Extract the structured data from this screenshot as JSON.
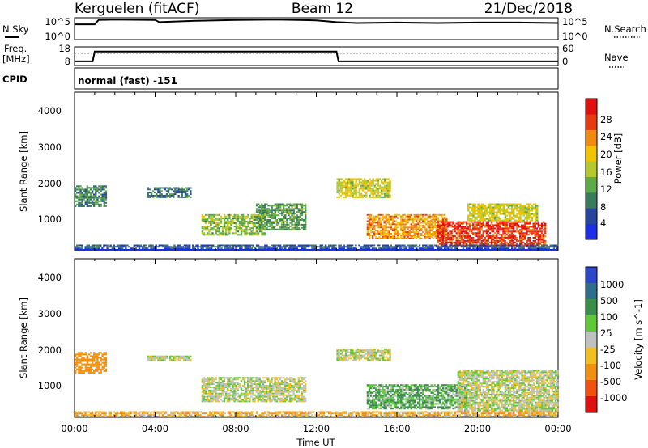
{
  "header": {
    "radar": "Kerguelen (fitACF)",
    "beam": "Beam 12",
    "date": "21/Dec/2018"
  },
  "noise_panel": {
    "left_label": "N.Sky",
    "left_ticks": [
      "10^5",
      "10^0"
    ],
    "right_ticks": [
      "10^5",
      "10^0"
    ],
    "right_label": "N.Search"
  },
  "freq_panel": {
    "left_label_1": "Freq.",
    "left_label_2": "[MHz]",
    "left_ticks": [
      "18",
      "8"
    ],
    "right_ticks": [
      "60",
      "0"
    ],
    "right_label": "Nave"
  },
  "cpid": {
    "label": "CPID",
    "text": "normal (fast) -151"
  },
  "x_axis": {
    "title": "Time UT",
    "ticks": [
      "00:00",
      "04:00",
      "08:00",
      "12:00",
      "16:00",
      "20:00",
      "00:00"
    ]
  },
  "power_panel": {
    "ylabel": "Slant Range [km]",
    "yticks": [
      "1000",
      "2000",
      "3000",
      "4000"
    ],
    "colorbar_label": "Power [dB]",
    "colorbar_ticks": [
      "4",
      "8",
      "12",
      "16",
      "20",
      "24",
      "28"
    ],
    "colors": [
      "#1b2fe6",
      "#27459c",
      "#3a7b5c",
      "#5fa94d",
      "#b7c82d",
      "#f2c400",
      "#f08a12",
      "#e83a12",
      "#e01010"
    ]
  },
  "velocity_panel": {
    "ylabel": "Slant Range [km]",
    "yticks": [
      "1000",
      "2000",
      "3000",
      "4000"
    ],
    "colorbar_label": "Velocity [m s^-1]",
    "colorbar_ticks": [
      "1000",
      "500",
      "100",
      "25",
      "-25",
      "-100",
      "-500",
      "-1000"
    ],
    "colors": [
      "#2a48c8",
      "#2f6e8a",
      "#3b8e4a",
      "#5fc83a",
      "#c0c0c0",
      "#f0c020",
      "#f09010",
      "#f05010",
      "#e01010"
    ]
  },
  "chart_data": [
    {
      "type": "line",
      "title": "N.Sky / N.Search",
      "x": [
        0,
        1,
        1.2,
        2,
        4,
        4.2,
        6,
        8,
        10,
        12,
        13,
        14,
        16,
        18,
        20,
        22,
        24
      ],
      "series": [
        {
          "name": "N.Sky",
          "values": [
            3.5,
            3.5,
            4.5,
            4.6,
            4.5,
            4.0,
            4.3,
            4.5,
            4.6,
            4.4,
            4.0,
            3.8,
            3.9,
            3.8,
            3.9,
            3.9,
            3.8
          ]
        }
      ],
      "ylim": [
        0,
        5
      ]
    },
    {
      "type": "line",
      "title": "Freq / Nave",
      "x": [
        0,
        0.9,
        1.0,
        13.0,
        13.1,
        24
      ],
      "series": [
        {
          "name": "Freq",
          "values": [
            10.2,
            10.2,
            15.5,
            15.5,
            10.2,
            10.2
          ]
        },
        {
          "name": "Nave",
          "values": [
            40,
            40,
            40,
            40,
            40,
            40
          ]
        }
      ],
      "ylim": [
        8,
        18
      ]
    },
    {
      "type": "heatmap",
      "title": "Power [dB]",
      "xlabel": "Time UT",
      "ylabel": "Slant Range [km]",
      "xlim": [
        0,
        24
      ],
      "ylim": [
        180,
        4600
      ],
      "regions": [
        {
          "t0": 0.0,
          "t1": 1.6,
          "r0": 1400,
          "r1": 2000,
          "value": 10
        },
        {
          "t0": 3.6,
          "t1": 5.8,
          "r0": 1650,
          "r1": 1950,
          "value": 8
        },
        {
          "t0": 6.3,
          "t1": 9.5,
          "r0": 600,
          "r1": 1200,
          "value": 14
        },
        {
          "t0": 9.0,
          "t1": 11.5,
          "r0": 750,
          "r1": 1500,
          "value": 11
        },
        {
          "t0": 13.0,
          "t1": 15.7,
          "r0": 1650,
          "r1": 2200,
          "value": 17
        },
        {
          "t0": 14.5,
          "t1": 18.5,
          "r0": 500,
          "r1": 1200,
          "value": 22
        },
        {
          "t0": 18.0,
          "t1": 23.4,
          "r0": 300,
          "r1": 1000,
          "value": 27
        },
        {
          "t0": 19.5,
          "t1": 23.0,
          "r0": 1000,
          "r1": 1500,
          "value": 17
        },
        {
          "t0": 0.0,
          "t1": 24.0,
          "r0": 180,
          "r1": 350,
          "value": 6
        }
      ]
    },
    {
      "type": "heatmap",
      "title": "Velocity [m s^-1]",
      "xlabel": "Time UT",
      "ylabel": "Slant Range [km]",
      "xlim": [
        0,
        24
      ],
      "ylim": [
        180,
        4600
      ],
      "regions": [
        {
          "t0": 0.0,
          "t1": 1.6,
          "r0": 1400,
          "r1": 2000,
          "value": -200
        },
        {
          "t0": 3.6,
          "t1": 5.8,
          "r0": 1750,
          "r1": 1900,
          "value": 0
        },
        {
          "t0": 6.3,
          "t1": 11.5,
          "r0": 600,
          "r1": 1300,
          "value": 0
        },
        {
          "t0": 13.0,
          "t1": 15.7,
          "r0": 1750,
          "r1": 2100,
          "value": 0
        },
        {
          "t0": 14.5,
          "t1": 19.5,
          "r0": 400,
          "r1": 1100,
          "value": 60
        },
        {
          "t0": 19.0,
          "t1": 24.0,
          "r0": 350,
          "r1": 1500,
          "value": 0
        },
        {
          "t0": 0.0,
          "t1": 24.0,
          "r0": 180,
          "r1": 350,
          "value": -60
        }
      ]
    }
  ]
}
